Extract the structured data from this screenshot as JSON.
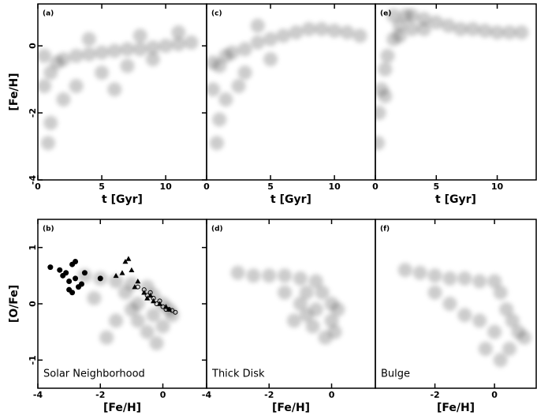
{
  "chart_data": [
    {
      "type": "scatter",
      "panel": "(a)",
      "xlabel": "t [Gyr]",
      "ylabel": "[Fe/H]",
      "xlim": [
        0,
        13.2
      ],
      "ylim": [
        -4,
        1.25
      ],
      "xticks": [
        0,
        5,
        10
      ],
      "yticks": [
        0,
        -2,
        -4
      ],
      "series": [
        {
          "color": "#000000",
          "marker": "blob",
          "x": [
            0.5,
            1,
            1.5,
            2,
            3,
            4,
            5,
            6,
            7,
            8,
            9,
            10,
            11,
            12,
            1,
            0.8,
            2,
            3,
            5,
            7,
            9,
            4,
            8,
            11,
            0.5,
            6
          ],
          "y": [
            -1.2,
            -0.8,
            -0.5,
            -0.4,
            -0.3,
            -0.25,
            -0.2,
            -0.15,
            -0.1,
            -0.1,
            -0.05,
            0,
            0.05,
            0.1,
            -2.3,
            -2.9,
            -1.6,
            -1.2,
            -0.8,
            -0.6,
            -0.4,
            0.2,
            0.3,
            0.4,
            -0.3,
            -1.3
          ]
        }
      ]
    },
    {
      "type": "scatter",
      "panel": "(c)",
      "xlabel": "t [Gyr]",
      "xlim": [
        0,
        13.2
      ],
      "ylim": [
        -4,
        1.25
      ],
      "xticks": [
        0,
        5,
        10
      ],
      "series": [
        {
          "color": "#000000",
          "marker": "blob",
          "x": [
            0.5,
            1,
            1.5,
            2,
            3,
            4,
            5,
            6,
            7,
            8,
            9,
            10,
            11,
            12,
            1,
            0.8,
            3,
            2.5,
            5,
            4,
            0.5,
            1.5
          ],
          "y": [
            -1.3,
            -0.6,
            -0.3,
            -0.2,
            -0.1,
            0.1,
            0.2,
            0.3,
            0.4,
            0.5,
            0.5,
            0.45,
            0.4,
            0.3,
            -2.2,
            -2.9,
            -0.8,
            -1.2,
            -0.4,
            0.6,
            -0.5,
            -1.6
          ]
        }
      ]
    },
    {
      "type": "scatter",
      "panel": "(e)",
      "xlabel": "t [Gyr]",
      "xlim": [
        0,
        13.2
      ],
      "ylim": [
        -4,
        1.25
      ],
      "xticks": [
        0,
        5,
        10
      ],
      "series": [
        {
          "color": "#000000",
          "marker": "blob",
          "x": [
            0.2,
            0.3,
            0.5,
            0.8,
            1,
            1.5,
            2,
            2.5,
            3,
            4,
            5,
            6,
            7,
            8,
            9,
            10,
            11,
            12,
            1.5,
            2,
            0.8,
            3,
            4
          ],
          "y": [
            -2.9,
            -2,
            -1.3,
            -0.7,
            -0.3,
            0.2,
            0.6,
            0.9,
            0.9,
            0.8,
            0.7,
            0.6,
            0.5,
            0.5,
            0.45,
            0.4,
            0.4,
            0.4,
            0.9,
            0.3,
            -1.5,
            0.5,
            0.5
          ]
        }
      ]
    },
    {
      "type": "scatter",
      "panel": "(b)",
      "xlabel": "[Fe/H]",
      "ylabel": "[O/Fe]",
      "annotation": "Solar Neighborhood",
      "xlim": [
        -4,
        1.4
      ],
      "ylim": [
        -1.5,
        1.5
      ],
      "xticks": [
        -4,
        -2,
        0
      ],
      "yticks": [
        1,
        0,
        -1
      ],
      "series": [
        {
          "color": "#000000",
          "marker": "blob",
          "x": [
            -2.5,
            -2,
            -1.5,
            -1,
            -0.5,
            -0.3,
            0,
            0.2,
            -0.3,
            -0.8,
            -1,
            -0.5,
            0,
            -1.5,
            -0.2,
            -0.8,
            -1.2,
            0.3,
            -2.2,
            -1.8
          ],
          "y": [
            0.5,
            0.45,
            0.4,
            0.35,
            0.3,
            0.15,
            0,
            -0.1,
            -0.2,
            -0.3,
            -0.1,
            -0.5,
            -0.4,
            -0.3,
            -0.7,
            0,
            0.2,
            -0.2,
            0.1,
            -0.6
          ]
        },
        {
          "color": "#000000",
          "marker": "circle",
          "x": [
            -3.6,
            -3.3,
            -3.2,
            -2.9,
            -2.8,
            -3.0,
            -2.7,
            -2.9,
            -3.0,
            -2.8,
            -2.6,
            -3.1,
            -2.0,
            -2.5
          ],
          "y": [
            0.65,
            0.6,
            0.5,
            0.7,
            0.75,
            0.4,
            0.3,
            0.2,
            0.25,
            0.45,
            0.35,
            0.55,
            0.45,
            0.55
          ]
        },
        {
          "color": "#000000",
          "marker": "triangle",
          "x": [
            -1.2,
            -1.1,
            -1.0,
            -1.5,
            -0.8,
            -0.6,
            -0.5,
            -0.3,
            -0.1,
            0.1,
            -1.3,
            -0.9,
            -0.4,
            0.2
          ],
          "y": [
            0.75,
            0.8,
            0.6,
            0.5,
            0.4,
            0.2,
            0.1,
            0.05,
            0,
            -0.05,
            0.55,
            0.3,
            0.15,
            -0.1
          ]
        },
        {
          "color": "#000000",
          "marker": "open-circle",
          "x": [
            -0.8,
            -0.6,
            -0.5,
            -0.3,
            -0.2,
            0,
            0.1,
            0.2,
            0.4,
            -0.4,
            -0.1,
            0.3
          ],
          "y": [
            0.3,
            0.25,
            0.15,
            0.1,
            0,
            -0.05,
            -0.1,
            -0.1,
            -0.15,
            0.2,
            0.05,
            -0.12
          ]
        }
      ]
    },
    {
      "type": "scatter",
      "panel": "(d)",
      "xlabel": "[Fe/H]",
      "annotation": "Thick Disk",
      "xlim": [
        -4,
        1.4
      ],
      "ylim": [
        -1.5,
        1.5
      ],
      "xticks": [
        -4,
        -2,
        0
      ],
      "series": [
        {
          "color": "#000000",
          "marker": "blob",
          "x": [
            -3,
            -2.5,
            -2,
            -1.5,
            -1,
            -0.5,
            -0.3,
            0,
            0.2,
            -0.5,
            -1,
            -1.2,
            -0.6,
            0,
            -0.2,
            -0.8,
            -1.5,
            -0.8,
            0.1
          ],
          "y": [
            0.55,
            0.5,
            0.5,
            0.5,
            0.45,
            0.4,
            0.2,
            0,
            -0.1,
            -0.1,
            0,
            -0.3,
            -0.4,
            -0.3,
            -0.6,
            0.2,
            0.2,
            -0.2,
            -0.5
          ]
        }
      ]
    },
    {
      "type": "scatter",
      "panel": "(f)",
      "xlabel": "[Fe/H]",
      "annotation": "Bulge",
      "xlim": [
        -4,
        1.4
      ],
      "ylim": [
        -1.5,
        1.5
      ],
      "xticks": [
        -2,
        0
      ],
      "series": [
        {
          "color": "#000000",
          "marker": "blob",
          "x": [
            -3,
            -2.5,
            -2,
            -1.5,
            -1,
            -0.5,
            0,
            0.2,
            0.4,
            0.6,
            0.8,
            1,
            0.5,
            0,
            -0.5,
            -1,
            -0.3,
            0.2,
            -1.5,
            -2
          ],
          "y": [
            0.6,
            0.55,
            0.5,
            0.45,
            0.45,
            0.4,
            0.4,
            0.2,
            -0.1,
            -0.3,
            -0.5,
            -0.6,
            -0.8,
            -0.5,
            -0.3,
            -0.2,
            -0.8,
            -1.0,
            0,
            0.2
          ]
        }
      ]
    }
  ]
}
